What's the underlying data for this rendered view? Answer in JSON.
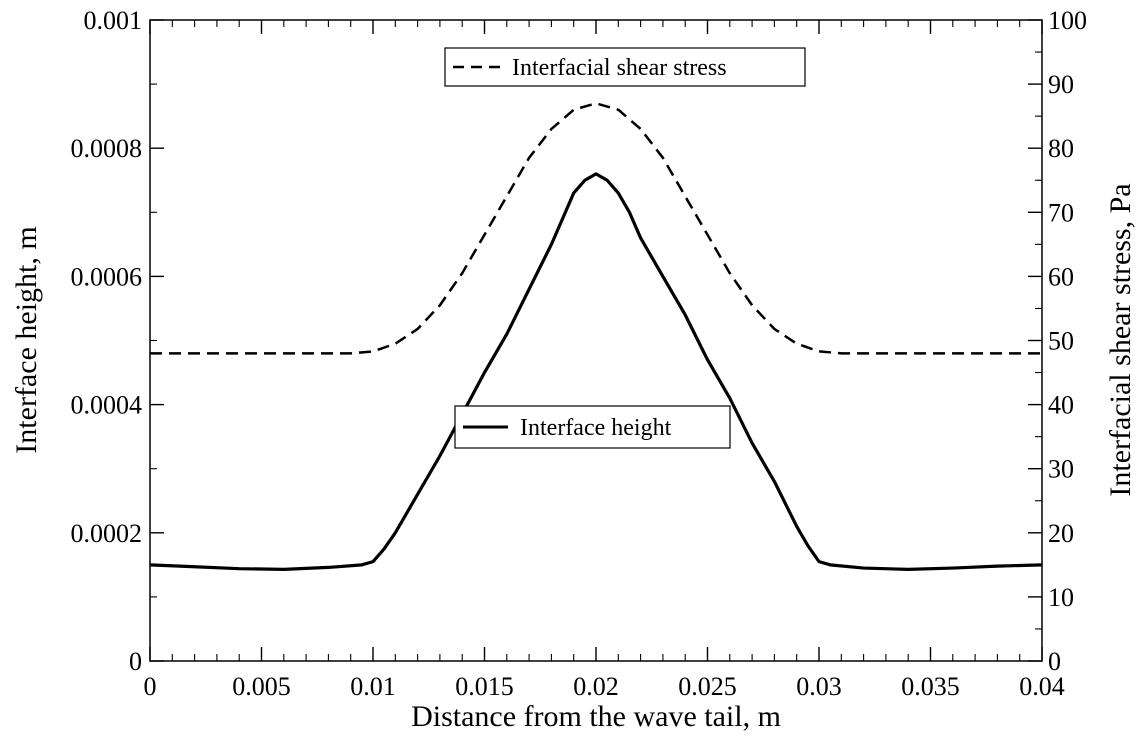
{
  "chart_data": {
    "type": "line",
    "title": "",
    "xlabel": "Distance from the wave tail, m",
    "ylabel_left": "Interface height, m",
    "ylabel_right": "Interfacial shear stress, Pa",
    "xlim": [
      0,
      0.04
    ],
    "ylim_left": [
      0,
      0.001
    ],
    "ylim_right": [
      0,
      100
    ],
    "x_ticks": [
      0,
      0.005,
      0.01,
      0.015,
      0.02,
      0.025,
      0.03,
      0.035,
      0.04
    ],
    "x_tick_labels": [
      "0",
      "0.005",
      "0.01",
      "0.015",
      "0.02",
      "0.025",
      "0.03",
      "0.035",
      "0.04"
    ],
    "y_left_ticks": [
      0,
      0.0002,
      0.0004,
      0.0006,
      0.0008,
      0.001
    ],
    "y_left_tick_labels": [
      "0",
      "0.0002",
      "0.0004",
      "0.0006",
      "0.0008",
      "0.001"
    ],
    "y_right_ticks": [
      0,
      10,
      20,
      30,
      40,
      50,
      60,
      70,
      80,
      90,
      100
    ],
    "y_right_tick_labels": [
      "0",
      "10",
      "20",
      "30",
      "40",
      "50",
      "60",
      "70",
      "80",
      "90",
      "100"
    ],
    "grid": false,
    "series": [
      {
        "name": "Interface height",
        "axis": "left",
        "style": "solid",
        "color": "#000000",
        "x": [
          0,
          0.002,
          0.004,
          0.006,
          0.008,
          0.0095,
          0.01,
          0.0105,
          0.011,
          0.012,
          0.013,
          0.014,
          0.015,
          0.016,
          0.017,
          0.018,
          0.0185,
          0.019,
          0.0195,
          0.02,
          0.0205,
          0.021,
          0.0215,
          0.022,
          0.023,
          0.024,
          0.025,
          0.026,
          0.027,
          0.028,
          0.029,
          0.0295,
          0.03,
          0.0305,
          0.032,
          0.034,
          0.036,
          0.038,
          0.04
        ],
        "y": [
          0.00015,
          0.000147,
          0.000144,
          0.000143,
          0.000146,
          0.00015,
          0.000155,
          0.000175,
          0.0002,
          0.00026,
          0.00032,
          0.000385,
          0.00045,
          0.00051,
          0.00058,
          0.00065,
          0.00069,
          0.00073,
          0.00075,
          0.00076,
          0.00075,
          0.00073,
          0.0007,
          0.00066,
          0.0006,
          0.00054,
          0.00047,
          0.00041,
          0.00034,
          0.00028,
          0.00021,
          0.00018,
          0.000155,
          0.00015,
          0.000145,
          0.000143,
          0.000145,
          0.000148,
          0.00015
        ]
      },
      {
        "name": "Interfacial shear stress",
        "axis": "right",
        "style": "dashed",
        "color": "#000000",
        "x": [
          0,
          0.002,
          0.004,
          0.006,
          0.008,
          0.009,
          0.01,
          0.011,
          0.012,
          0.013,
          0.014,
          0.015,
          0.016,
          0.017,
          0.018,
          0.019,
          0.02,
          0.021,
          0.022,
          0.023,
          0.024,
          0.025,
          0.026,
          0.027,
          0.028,
          0.029,
          0.03,
          0.031,
          0.032,
          0.034,
          0.036,
          0.038,
          0.04
        ],
        "y": [
          48,
          48,
          48,
          48,
          48,
          48,
          48.3,
          49.5,
          51.8,
          55.5,
          60.5,
          66.5,
          72.5,
          78.5,
          83,
          86,
          87,
          86,
          83,
          78.5,
          72.5,
          66.5,
          60.5,
          55.5,
          51.8,
          49.5,
          48.3,
          48,
          48,
          48,
          48,
          48,
          48
        ]
      }
    ],
    "legend": [
      {
        "label": "Interfacial shear stress",
        "style": "dashed",
        "placement": "top-center"
      },
      {
        "label": "Interface height",
        "style": "solid",
        "placement": "center-left"
      }
    ]
  }
}
